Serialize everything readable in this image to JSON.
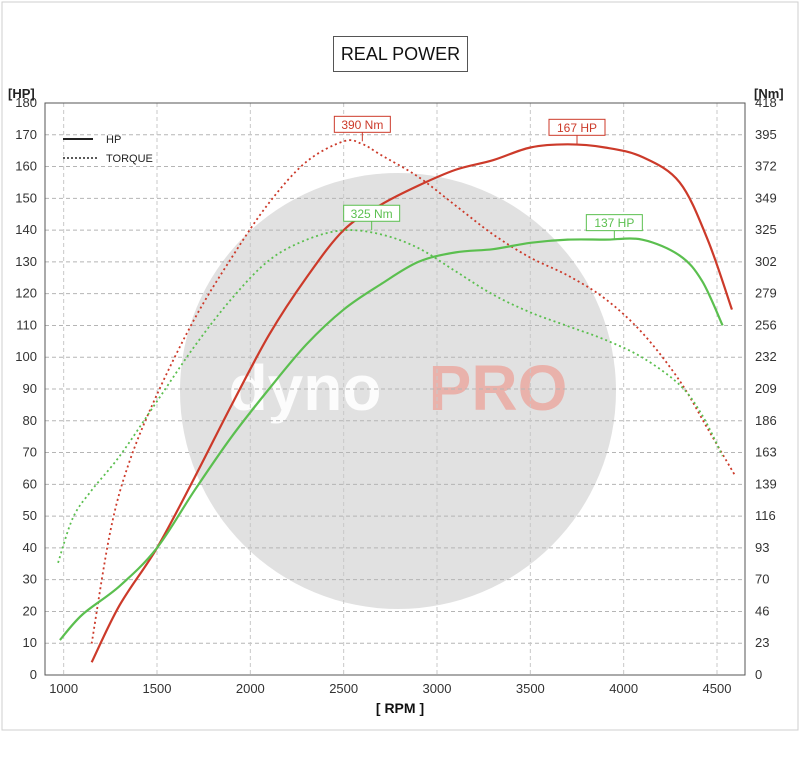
{
  "chart_data": {
    "type": "line",
    "title": "REAL POWER",
    "watermark": {
      "text_dark": "dyno",
      "text_red": "PRO"
    },
    "xlabel": "[ RPM ]",
    "ylabel_left": "[HP]",
    "ylabel_right": "[Nm]",
    "xlim": [
      900,
      4650
    ],
    "ylim_left": [
      0,
      180
    ],
    "ylim_right": [
      0,
      418
    ],
    "x_ticks": [
      1000,
      1500,
      2000,
      2500,
      3000,
      3500,
      4000,
      4500
    ],
    "y_ticks_left": [
      0,
      10,
      20,
      30,
      40,
      50,
      60,
      70,
      80,
      90,
      100,
      110,
      120,
      130,
      140,
      150,
      160,
      170,
      180
    ],
    "y_ticks_right": [
      "0",
      "23",
      "46",
      "70",
      "93",
      "116",
      "139",
      "163",
      "186",
      "209",
      "232",
      "256",
      "279",
      "302",
      "325",
      "349",
      "372",
      "395",
      "418"
    ],
    "grid": true,
    "legend": {
      "position": "top-left",
      "entries": [
        {
          "label": "HP",
          "style": "solid"
        },
        {
          "label": "TORQUE",
          "style": "dotted"
        }
      ]
    },
    "series": [
      {
        "color": "#cc3a2a",
        "style": "solid",
        "axis": "left",
        "x": [
          1150,
          1300,
          1500,
          1700,
          1900,
          2100,
          2300,
          2500,
          2700,
          2900,
          3100,
          3300,
          3500,
          3700,
          3900,
          4100,
          4300,
          4450,
          4580
        ],
        "values": [
          4,
          22,
          40,
          62,
          85,
          107,
          125,
          140,
          148,
          154,
          159,
          162,
          166,
          167,
          166,
          163,
          155,
          137,
          115
        ]
      },
      {
        "color": "#cc3a2a",
        "style": "dotted",
        "axis": "right",
        "x": [
          1150,
          1250,
          1350,
          1500,
          1700,
          1900,
          2100,
          2300,
          2500,
          2600,
          2700,
          2900,
          3100,
          3300,
          3500,
          3700,
          3900,
          4100,
          4300,
          4450,
          4600
        ],
        "values": [
          23,
          105,
          155,
          205,
          260,
          305,
          345,
          375,
          390,
          388,
          380,
          364,
          343,
          322,
          305,
          292,
          275,
          250,
          215,
          180,
          145
        ]
      },
      {
        "color": "#5bbf4f",
        "style": "solid",
        "axis": "left",
        "x": [
          980,
          1100,
          1300,
          1500,
          1700,
          1900,
          2100,
          2300,
          2500,
          2700,
          2900,
          3100,
          3300,
          3500,
          3700,
          3900,
          4100,
          4300,
          4420,
          4530
        ],
        "values": [
          11,
          19,
          28,
          40,
          58,
          75,
          90,
          104,
          115,
          123,
          130,
          133,
          134,
          136,
          137,
          137,
          137,
          132,
          124,
          110
        ]
      },
      {
        "color": "#5bbf4f",
        "style": "dotted",
        "axis": "right",
        "x": [
          970,
          1050,
          1150,
          1300,
          1500,
          1700,
          1900,
          2100,
          2300,
          2500,
          2700,
          2900,
          3100,
          3300,
          3500,
          3700,
          3900,
          4100,
          4300,
          4420,
          4530
        ],
        "values": [
          82,
          115,
          135,
          160,
          200,
          240,
          275,
          303,
          318,
          325,
          322,
          312,
          295,
          278,
          265,
          255,
          245,
          232,
          212,
          190,
          160
        ]
      }
    ],
    "annotations": [
      {
        "text": "390 Nm",
        "x": 2600,
        "y": 390,
        "axis": "right",
        "color": "#cc3a2a"
      },
      {
        "text": "167 HP",
        "x": 3750,
        "y": 167,
        "axis": "left",
        "color": "#cc3a2a"
      },
      {
        "text": "325 Nm",
        "x": 2650,
        "y": 325,
        "axis": "right",
        "color": "#5bbf4f"
      },
      {
        "text": "137 HP",
        "x": 3950,
        "y": 137,
        "axis": "left",
        "color": "#5bbf4f"
      }
    ]
  }
}
